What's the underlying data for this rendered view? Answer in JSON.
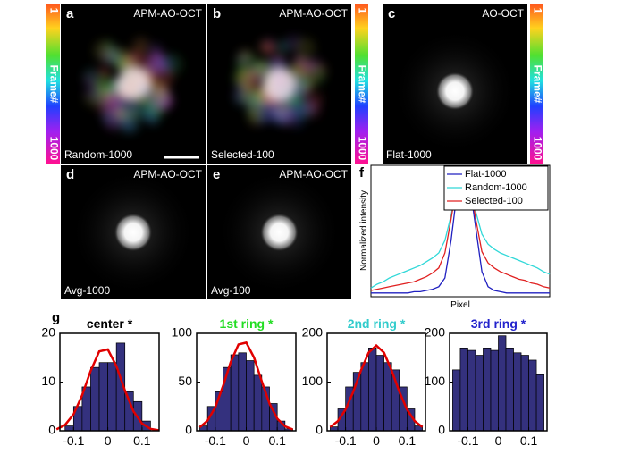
{
  "panels": [
    {
      "letter": "a",
      "method": "APM-AO-OCT",
      "label": "Random-1000"
    },
    {
      "letter": "b",
      "method": "APM-AO-OCT",
      "label": "Selected-100"
    },
    {
      "letter": "c",
      "method": "AO-OCT",
      "label": "Flat-1000"
    },
    {
      "letter": "d",
      "method": "APM-AO-OCT",
      "label": "Avg-1000"
    },
    {
      "letter": "e",
      "method": "APM-AO-OCT",
      "label": "Avg-100"
    }
  ],
  "colorbar": {
    "start": "1",
    "label": "Frame#",
    "end": "1000"
  },
  "chart_data": [
    {
      "type": "line",
      "panel": "f",
      "ylabel": "Normalized intensity",
      "xlabel": "Pixel",
      "ylim": [
        0,
        1.05
      ],
      "legend": "upper-right",
      "series": [
        {
          "name": "Flat-1000",
          "color": "#2020c0",
          "values": [
            0.03,
            0.03,
            0.03,
            0.03,
            0.03,
            0.03,
            0.03,
            0.04,
            0.04,
            0.05,
            0.06,
            0.08,
            0.15,
            0.45,
            0.85,
            1.0,
            0.9,
            0.55,
            0.2,
            0.08,
            0.05,
            0.04,
            0.03,
            0.03,
            0.03,
            0.03,
            0.03,
            0.03,
            0.03,
            0.03
          ]
        },
        {
          "name": "Random-1000",
          "color": "#30d8d8",
          "values": [
            0.07,
            0.1,
            0.12,
            0.15,
            0.17,
            0.19,
            0.21,
            0.23,
            0.25,
            0.28,
            0.31,
            0.35,
            0.45,
            0.65,
            0.9,
            0.98,
            0.9,
            0.68,
            0.5,
            0.42,
            0.38,
            0.35,
            0.33,
            0.31,
            0.29,
            0.27,
            0.25,
            0.23,
            0.2,
            0.18
          ]
        },
        {
          "name": "Selected-100",
          "color": "#e02020",
          "values": [
            0.05,
            0.06,
            0.07,
            0.08,
            0.09,
            0.1,
            0.11,
            0.12,
            0.14,
            0.16,
            0.19,
            0.23,
            0.35,
            0.62,
            0.92,
            1.0,
            0.92,
            0.62,
            0.36,
            0.27,
            0.23,
            0.2,
            0.18,
            0.16,
            0.14,
            0.13,
            0.11,
            0.1,
            0.08,
            0.07
          ]
        }
      ]
    },
    {
      "type": "histogram",
      "panel": "g",
      "title": "center *",
      "title_color": "#000000",
      "color": "#34317e",
      "bins": [
        -0.125,
        -0.1,
        -0.075,
        -0.05,
        -0.025,
        0,
        0.025,
        0.05,
        0.075,
        0.1,
        0.125
      ],
      "values": [
        1,
        5,
        9,
        13,
        14,
        14,
        18,
        8,
        6,
        2
      ],
      "xlim": [
        -0.14,
        0.15
      ],
      "ylim": [
        0,
        20
      ],
      "xticks": [
        -0.1,
        0,
        0.1
      ],
      "yticks": [
        0,
        10,
        20
      ],
      "fit": {
        "color": "#e00000",
        "x": [
          -0.15,
          -0.125,
          -0.1,
          -0.075,
          -0.05,
          -0.025,
          0,
          0.025,
          0.05,
          0.075,
          0.1,
          0.125,
          0.15
        ],
        "values": [
          0.3,
          1.2,
          3.4,
          7.3,
          12.3,
          16.3,
          16.7,
          13.3,
          8.3,
          4.0,
          1.5,
          0.4,
          0.1
        ]
      }
    },
    {
      "type": "histogram",
      "title": "1st ring *",
      "title_color": "#22dd22",
      "color": "#34317e",
      "bins": [
        -0.15,
        -0.125,
        -0.1,
        -0.075,
        -0.05,
        -0.025,
        0,
        0.025,
        0.05,
        0.075,
        0.1,
        0.125,
        0.15
      ],
      "values": [
        5,
        25,
        40,
        65,
        78,
        80,
        72,
        57,
        45,
        28,
        10,
        2
      ],
      "xlim": [
        -0.16,
        0.16
      ],
      "ylim": [
        0,
        100
      ],
      "xticks": [
        -0.1,
        0,
        0.1
      ],
      "yticks": [
        0,
        50,
        100
      ],
      "fit": {
        "color": "#e00000",
        "x": [
          -0.15,
          -0.125,
          -0.1,
          -0.075,
          -0.05,
          -0.025,
          0,
          0.025,
          0.05,
          0.075,
          0.1,
          0.125,
          0.15
        ],
        "values": [
          3.6,
          10.4,
          24.1,
          45.9,
          70.7,
          88.6,
          90.5,
          75.2,
          50.8,
          27.9,
          12.5,
          4.6,
          1.3
        ]
      }
    },
    {
      "type": "histogram",
      "title": "2nd ring *",
      "title_color": "#33cccc",
      "color": "#34317e",
      "bins": [
        -0.15,
        -0.125,
        -0.1,
        -0.075,
        -0.05,
        -0.025,
        0,
        0.025,
        0.05,
        0.075,
        0.1,
        0.125,
        0.15
      ],
      "values": [
        8,
        45,
        90,
        120,
        140,
        170,
        155,
        140,
        125,
        90,
        45,
        10
      ],
      "xlim": [
        -0.16,
        0.16
      ],
      "ylim": [
        0,
        200
      ],
      "xticks": [
        -0.1,
        0,
        0.1
      ],
      "yticks": [
        0,
        100,
        200
      ],
      "fit": {
        "color": "#e00000",
        "x": [
          -0.15,
          -0.125,
          -0.1,
          -0.075,
          -0.05,
          -0.025,
          0,
          0.025,
          0.05,
          0.075,
          0.1,
          0.125,
          0.15
        ],
        "values": [
          7.7,
          20.0,
          43.6,
          80.1,
          123.7,
          160.4,
          175,
          160.4,
          123.7,
          80.1,
          43.6,
          20.0,
          7.7
        ]
      }
    },
    {
      "type": "histogram",
      "title": "3rd ring *",
      "title_color": "#2222cc",
      "color": "#34317e",
      "bins": [
        -0.15,
        -0.125,
        -0.1,
        -0.075,
        -0.05,
        -0.025,
        0,
        0.025,
        0.05,
        0.075,
        0.1,
        0.125,
        0.15
      ],
      "values": [
        125,
        170,
        165,
        155,
        170,
        165,
        195,
        170,
        160,
        155,
        145,
        115
      ],
      "xlim": [
        -0.16,
        0.16
      ],
      "ylim": [
        0,
        200
      ],
      "xticks": [
        -0.1,
        0,
        0.1
      ],
      "yticks": [
        0,
        100,
        200
      ]
    }
  ]
}
